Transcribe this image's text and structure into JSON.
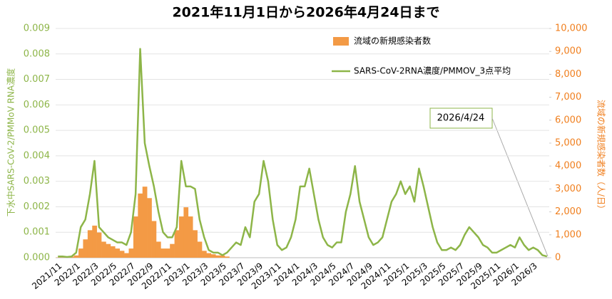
{
  "chart_data": {
    "type": "bar-line",
    "title": "2021年11月1日から2026年4月24日まで",
    "y_label": "下水中SARS-CoV-2/PMMoV RNA濃度",
    "y2_label": "流域の新規感染者数（人/日）",
    "annotation": "2026/4/24",
    "categories": [
      "2021/11",
      null,
      null,
      null,
      "2022/1",
      null,
      null,
      null,
      "2022/3",
      null,
      null,
      null,
      "2022/5",
      null,
      null,
      null,
      "2022/7",
      null,
      null,
      null,
      "2022/9",
      null,
      null,
      null,
      "2022/11",
      null,
      null,
      null,
      "2023/1",
      null,
      null,
      null,
      "2023/3",
      null,
      null,
      null,
      "2023/5",
      null,
      null,
      null,
      "2023/7",
      null,
      null,
      null,
      "2023/9",
      null,
      null,
      null,
      "2023/11",
      null,
      null,
      null,
      "2024/1",
      null,
      null,
      null,
      "2024/3",
      null,
      null,
      null,
      "2024/5",
      null,
      null,
      null,
      "2024/7",
      null,
      null,
      null,
      "2024/9",
      null,
      null,
      null,
      "2024/11",
      null,
      null,
      null,
      "2025/1",
      null,
      null,
      null,
      "2025/3",
      null,
      null,
      null,
      "2025/5",
      null,
      null,
      null,
      "2025/7",
      null,
      null,
      null,
      "2025/9",
      null,
      null,
      null,
      "2025/11",
      null,
      null,
      null,
      "2026/1",
      null,
      null,
      null,
      "2026/3",
      null,
      null,
      null
    ],
    "series": [
      {
        "name": "流域の新規感染者数",
        "type": "bar",
        "axis": "y2",
        "color": "#f39a45",
        "values": [
          10,
          10,
          20,
          50,
          100,
          400,
          800,
          1200,
          1400,
          1100,
          700,
          600,
          500,
          400,
          300,
          200,
          400,
          1800,
          2800,
          3100,
          2600,
          1600,
          700,
          400,
          400,
          600,
          1200,
          1800,
          2200,
          1800,
          1200,
          700,
          300,
          200,
          150,
          100,
          100,
          50,
          null,
          null,
          null,
          null,
          null,
          null,
          null,
          null,
          null,
          null,
          null,
          null,
          null,
          null,
          null,
          null,
          null,
          null,
          null,
          null,
          null,
          null,
          null,
          null,
          null,
          null,
          null,
          null,
          null,
          null,
          null,
          null,
          null,
          null,
          null,
          null,
          null,
          null,
          null,
          null,
          null,
          null,
          null,
          null,
          null,
          null,
          null,
          null,
          null,
          null,
          null,
          null,
          null,
          null,
          null,
          null,
          null,
          null,
          null,
          null,
          null,
          null,
          null,
          null,
          null,
          null,
          null,
          null,
          null,
          null
        ]
      },
      {
        "name": "SARS-CoV-2RNA濃度/PMMOV_3点平均",
        "type": "line",
        "color": "#8db548",
        "values": [
          5e-05,
          5e-05,
          3e-05,
          5e-05,
          0.0002,
          0.0012,
          0.0015,
          0.0025,
          0.0038,
          0.0012,
          0.001,
          0.0008,
          0.0007,
          0.0006,
          0.0006,
          0.0005,
          0.001,
          0.0025,
          0.0082,
          0.0045,
          0.0036,
          0.0028,
          0.0018,
          0.001,
          0.0008,
          0.0008,
          0.0012,
          0.0038,
          0.0028,
          0.0028,
          0.0027,
          0.0015,
          0.0008,
          0.0003,
          0.0002,
          0.0002,
          0.0001,
          0.0002,
          0.0004,
          0.0006,
          0.0005,
          0.0012,
          0.0008,
          0.0022,
          0.0025,
          0.0038,
          0.003,
          0.0015,
          0.0005,
          0.0003,
          0.0004,
          0.0008,
          0.0015,
          0.0028,
          0.0028,
          0.0035,
          0.0025,
          0.0015,
          0.0008,
          0.0005,
          0.0004,
          0.0006,
          0.0006,
          0.0018,
          0.0025,
          0.0036,
          0.0022,
          0.0015,
          0.0008,
          0.0005,
          0.0006,
          0.0008,
          0.0015,
          0.0022,
          0.0025,
          0.003,
          0.0025,
          0.0028,
          0.0022,
          0.0035,
          0.0028,
          0.002,
          0.0012,
          0.0006,
          0.0003,
          0.0003,
          0.0004,
          0.0003,
          0.0005,
          0.0009,
          0.0012,
          0.001,
          0.0008,
          0.0005,
          0.0004,
          0.0002,
          0.0002,
          0.0003,
          0.0004,
          0.0005,
          0.0004,
          0.0008,
          0.0005,
          0.0003,
          0.0004,
          0.0003,
          0.0001,
          5e-05
        ]
      }
    ],
    "ylim": [
      0,
      0.009
    ],
    "yticks": [
      {
        "value": 0,
        "label": "0.000"
      },
      {
        "value": 0.001,
        "label": "0.001"
      },
      {
        "value": 0.002,
        "label": "0.002"
      },
      {
        "value": 0.003,
        "label": "0.003"
      },
      {
        "value": 0.004,
        "label": "0.004"
      },
      {
        "value": 0.005,
        "label": "0.005"
      },
      {
        "value": 0.006,
        "label": "0.006"
      },
      {
        "value": 0.007,
        "label": "0.007"
      },
      {
        "value": 0.008,
        "label": "0.008"
      },
      {
        "value": 0.009,
        "label": "0.009"
      }
    ],
    "y2lim": [
      0,
      10000
    ],
    "y2ticks": [
      0,
      {
        "value": 1000,
        "label": "1,000"
      },
      {
        "value": 2000,
        "label": "2,000"
      },
      {
        "value": 3000,
        "label": "3,000"
      },
      {
        "value": 4000,
        "label": "4,000"
      },
      {
        "value": 5000,
        "label": "5,000"
      },
      {
        "value": 6000,
        "label": "6,000"
      },
      {
        "value": 7000,
        "label": "7,000"
      },
      {
        "value": 8000,
        "label": "8,000"
      },
      {
        "value": 9000,
        "label": "9,000"
      },
      {
        "value": 10000,
        "label": "10,000"
      }
    ],
    "grid": true,
    "y_color": "#8db548",
    "y2_color": "#f07f1e"
  }
}
